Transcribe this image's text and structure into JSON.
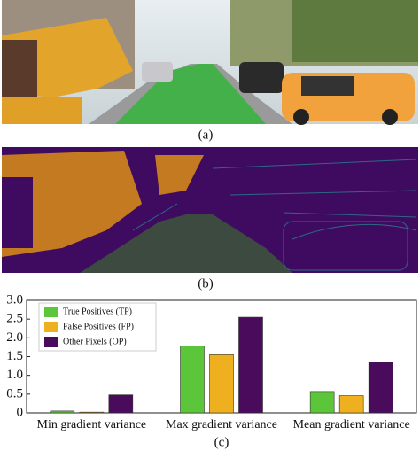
{
  "captions": [
    "(a)",
    "(b)"
  ],
  "chart_data": {
    "type": "bar",
    "caption": "(c)",
    "categories": [
      "Min gradient variance",
      "Max gradient variance",
      "Mean gradient variance"
    ],
    "series": [
      {
        "name": "True Positives (TP)",
        "color": "#5cc63a",
        "values": [
          0.05,
          1.78,
          0.57
        ]
      },
      {
        "name": "False Positives (FP)",
        "color": "#efb020",
        "values": [
          0.02,
          1.55,
          0.46
        ]
      },
      {
        "name": "Other Pixels (OP)",
        "color": "#4a0b5c",
        "values": [
          0.48,
          2.55,
          1.35
        ]
      }
    ],
    "ylim": [
      0,
      3
    ],
    "yticks": [
      0,
      0.5,
      {
        "value": 1,
        "label": "1.0"
      },
      1.5,
      {
        "value": 2,
        "label": "2.0"
      },
      2.5,
      {
        "value": 3,
        "label": "3.0"
      }
    ],
    "legend": "upper left"
  }
}
